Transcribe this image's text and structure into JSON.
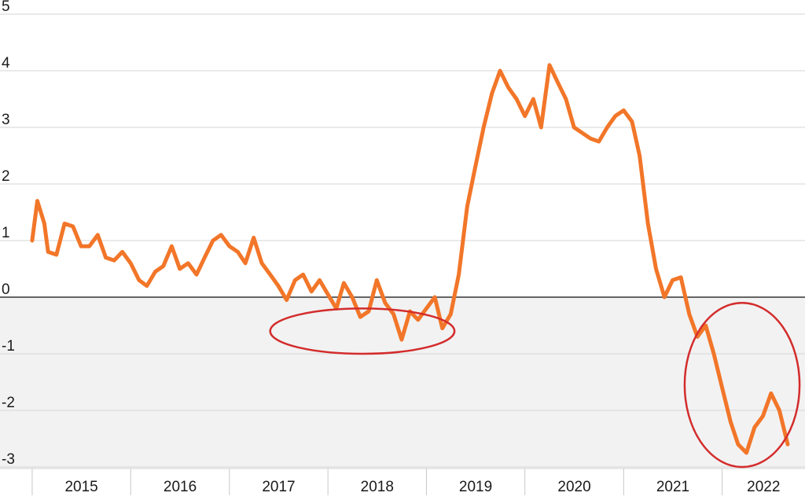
{
  "chart_data": {
    "type": "line",
    "title": "",
    "xlabel": "",
    "ylabel": "",
    "ylim": [
      -3,
      5
    ],
    "xlim": [
      "2014-11-01",
      "2022-09-30"
    ],
    "y_ticks": [
      "5",
      "4",
      "3",
      "2",
      "1",
      "0",
      "-1",
      "-2",
      "-3"
    ],
    "x_tick_labels": [
      "2015",
      "2016",
      "2017",
      "2018",
      "2019",
      "2020",
      "2021",
      "2022"
    ],
    "grid": true,
    "negative_region_shaded": true,
    "series": [
      {
        "name": "",
        "color": "#F27629",
        "points": [
          [
            "2015-01-01",
            1.0
          ],
          [
            "2015-01-20",
            1.7
          ],
          [
            "2015-02-15",
            1.3
          ],
          [
            "2015-03-01",
            0.8
          ],
          [
            "2015-04-01",
            0.75
          ],
          [
            "2015-05-01",
            1.3
          ],
          [
            "2015-06-01",
            1.25
          ],
          [
            "2015-07-01",
            0.9
          ],
          [
            "2015-08-01",
            0.9
          ],
          [
            "2015-09-01",
            1.1
          ],
          [
            "2015-10-01",
            0.7
          ],
          [
            "2015-11-01",
            0.65
          ],
          [
            "2015-12-01",
            0.8
          ],
          [
            "2016-01-01",
            0.6
          ],
          [
            "2016-02-01",
            0.3
          ],
          [
            "2016-03-01",
            0.2
          ],
          [
            "2016-04-01",
            0.45
          ],
          [
            "2016-05-01",
            0.55
          ],
          [
            "2016-06-01",
            0.9
          ],
          [
            "2016-07-01",
            0.5
          ],
          [
            "2016-08-01",
            0.6
          ],
          [
            "2016-09-01",
            0.4
          ],
          [
            "2016-10-01",
            0.7
          ],
          [
            "2016-11-01",
            1.0
          ],
          [
            "2016-12-01",
            1.1
          ],
          [
            "2017-01-01",
            0.9
          ],
          [
            "2017-02-01",
            0.8
          ],
          [
            "2017-03-01",
            0.6
          ],
          [
            "2017-04-01",
            1.05
          ],
          [
            "2017-05-01",
            0.6
          ],
          [
            "2017-06-01",
            0.4
          ],
          [
            "2017-07-01",
            0.2
          ],
          [
            "2017-08-01",
            -0.05
          ],
          [
            "2017-09-01",
            0.3
          ],
          [
            "2017-10-01",
            0.4
          ],
          [
            "2017-11-01",
            0.1
          ],
          [
            "2017-12-01",
            0.3
          ],
          [
            "2018-01-01",
            0.05
          ],
          [
            "2018-02-01",
            -0.2
          ],
          [
            "2018-03-01",
            0.25
          ],
          [
            "2018-04-01",
            0.0
          ],
          [
            "2018-05-01",
            -0.35
          ],
          [
            "2018-06-01",
            -0.25
          ],
          [
            "2018-07-01",
            0.3
          ],
          [
            "2018-08-01",
            -0.1
          ],
          [
            "2018-09-01",
            -0.3
          ],
          [
            "2018-10-01",
            -0.75
          ],
          [
            "2018-11-01",
            -0.25
          ],
          [
            "2018-12-01",
            -0.4
          ],
          [
            "2019-01-01",
            -0.2
          ],
          [
            "2019-02-01",
            0.0
          ],
          [
            "2019-03-01",
            -0.55
          ],
          [
            "2019-04-01",
            -0.3
          ],
          [
            "2019-05-01",
            0.4
          ],
          [
            "2019-06-01",
            1.6
          ],
          [
            "2019-07-01",
            2.3
          ],
          [
            "2019-08-01",
            3.0
          ],
          [
            "2019-09-01",
            3.6
          ],
          [
            "2019-10-01",
            4.0
          ],
          [
            "2019-11-01",
            3.7
          ],
          [
            "2019-12-01",
            3.5
          ],
          [
            "2020-01-01",
            3.2
          ],
          [
            "2020-02-01",
            3.5
          ],
          [
            "2020-03-01",
            3.0
          ],
          [
            "2020-04-01",
            4.1
          ],
          [
            "2020-05-01",
            3.8
          ],
          [
            "2020-06-01",
            3.5
          ],
          [
            "2020-07-01",
            3.0
          ],
          [
            "2020-08-01",
            2.9
          ],
          [
            "2020-09-01",
            2.8
          ],
          [
            "2020-10-01",
            2.75
          ],
          [
            "2020-11-01",
            3.0
          ],
          [
            "2020-12-01",
            3.2
          ],
          [
            "2021-01-01",
            3.3
          ],
          [
            "2021-02-01",
            3.1
          ],
          [
            "2021-03-01",
            2.5
          ],
          [
            "2021-04-01",
            1.3
          ],
          [
            "2021-05-01",
            0.5
          ],
          [
            "2021-06-01",
            0.0
          ],
          [
            "2021-07-01",
            0.3
          ],
          [
            "2021-08-01",
            0.35
          ],
          [
            "2021-09-01",
            -0.3
          ],
          [
            "2021-10-01",
            -0.7
          ],
          [
            "2021-11-01",
            -0.5
          ],
          [
            "2021-12-01",
            -1.0
          ],
          [
            "2022-01-01",
            -1.6
          ],
          [
            "2022-02-01",
            -2.2
          ],
          [
            "2022-03-01",
            -2.6
          ],
          [
            "2022-04-01",
            -2.75
          ],
          [
            "2022-05-01",
            -2.3
          ],
          [
            "2022-06-01",
            -2.1
          ],
          [
            "2022-07-01",
            -1.7
          ],
          [
            "2022-08-01",
            -2.0
          ],
          [
            "2022-09-01",
            -2.6
          ]
        ]
      }
    ],
    "annotations": [
      {
        "type": "ellipse",
        "color": "#D42C2C",
        "x_range": [
          "2017-06-01",
          "2019-04-15"
        ],
        "y_range": [
          -0.2,
          -1.0
        ]
      },
      {
        "type": "ellipse",
        "color": "#D42C2C",
        "x_range": [
          "2021-08-15",
          "2022-10-15"
        ],
        "y_range": [
          -0.1,
          -3.0
        ]
      }
    ]
  }
}
